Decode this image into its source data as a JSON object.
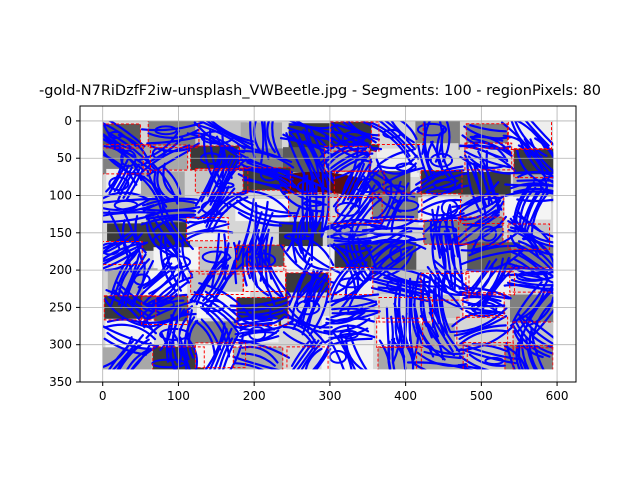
{
  "chart_data": {
    "type": "heatmap",
    "title": "-gold-N7RiDzfF2iw-unsplash_VWBeetle.jpg - Segments: 100 - regionPixels: 80",
    "xlabel": "",
    "ylabel": "",
    "xlim": [
      -30,
      625
    ],
    "ylim": [
      350,
      -20
    ],
    "image_extent": {
      "x": [
        0,
        595
      ],
      "y": [
        0,
        333
      ]
    },
    "y_inverted": true,
    "grid": true,
    "x_ticks": [
      0,
      100,
      200,
      300,
      400,
      500,
      600
    ],
    "y_ticks": [
      0,
      50,
      100,
      150,
      200,
      250,
      300,
      350
    ],
    "x_tick_labels": [
      "0",
      "100",
      "200",
      "300",
      "400",
      "500",
      "600"
    ],
    "y_tick_labels": [
      "0",
      "50",
      "100",
      "150",
      "200",
      "250",
      "300",
      "350"
    ],
    "segments": 100,
    "colors": {
      "contour": "#0000ff",
      "boundary": "#ff0000",
      "background_light": "#d6d6d6",
      "background_dark": "#808080",
      "grid": "#b0b0b0"
    }
  }
}
